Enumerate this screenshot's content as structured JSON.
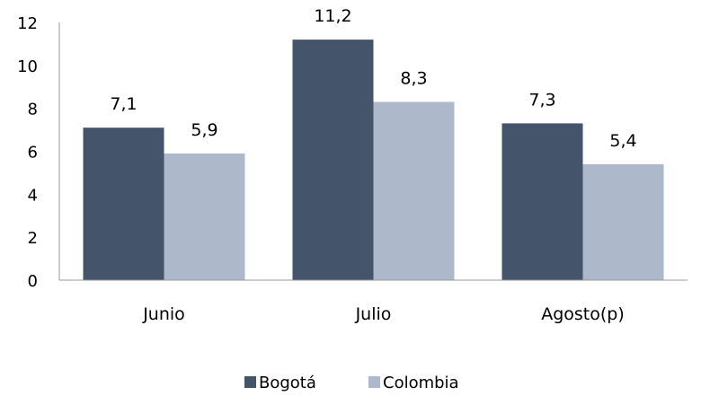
{
  "chart_data": {
    "type": "bar",
    "title": "",
    "xlabel": "",
    "ylabel": "",
    "categories": [
      "Junio",
      "Julio",
      "Agosto(p)"
    ],
    "series": [
      {
        "name": "Bogotá",
        "color": "#44546a",
        "values": [
          7.1,
          11.2,
          7.3
        ],
        "labels": [
          "7,1",
          "11,2",
          "7,3"
        ]
      },
      {
        "name": "Colombia",
        "color": "#adb9ca",
        "values": [
          5.9,
          8.3,
          5.4
        ],
        "labels": [
          "5,9",
          "8,3",
          "5,4"
        ]
      }
    ],
    "ylim": [
      0,
      12
    ],
    "yticks": [
      0,
      2,
      4,
      6,
      8,
      10,
      12
    ],
    "grid": false,
    "legend_position": "bottom"
  }
}
